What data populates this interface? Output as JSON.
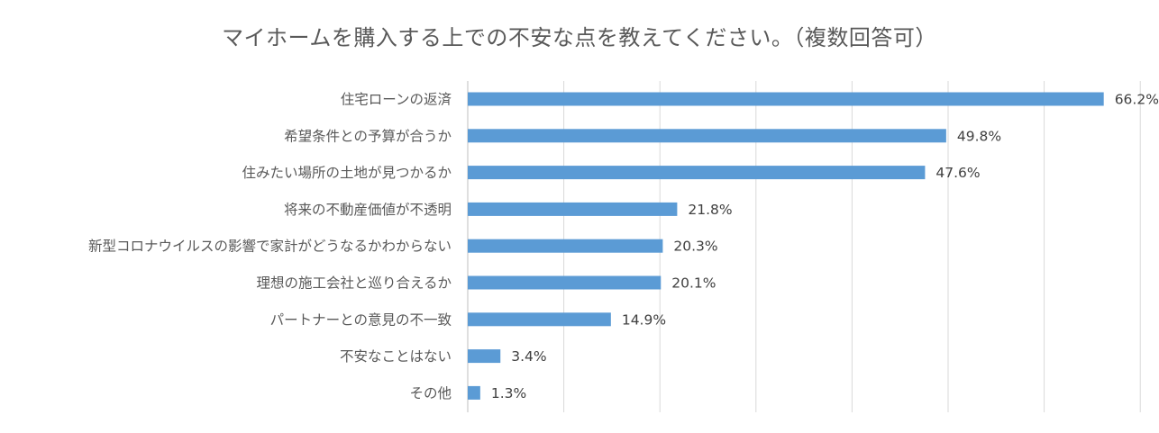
{
  "chart_data": {
    "type": "bar",
    "orientation": "horizontal",
    "title": "マイホームを購入する上での不安な点を教えてください。（複数回答可）",
    "categories": [
      "住宅ローンの返済",
      "希望条件との予算が合うか",
      "住みたい場所の土地が見つかるか",
      "将来の不動産価値が不透明",
      "新型コロナウイルスの影響で家計がどうなるかわからない",
      "理想の施工会社と巡り合えるか",
      "パートナーとの意見の不一致",
      "不安なことはない",
      "その他"
    ],
    "values": [
      66.2,
      49.8,
      47.6,
      21.8,
      20.3,
      20.1,
      14.9,
      3.4,
      1.3
    ],
    "value_labels": [
      "66.2%",
      "49.8%",
      "47.6%",
      "21.8%",
      "20.3%",
      "20.1%",
      "14.9%",
      "3.4%",
      "1.3%"
    ],
    "unit": "%",
    "xlim": [
      0,
      70
    ],
    "gridlines": "vertical",
    "bar_color": "#5B9BD5",
    "gridline_color": "#D9D9D9",
    "legend": "none"
  }
}
